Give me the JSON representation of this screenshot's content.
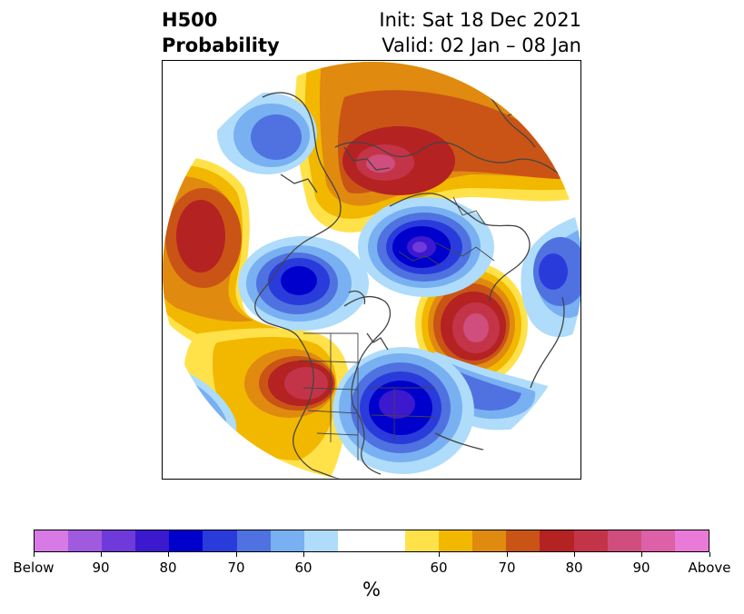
{
  "header": {
    "title_line1": "H500",
    "title_line2": "Probability",
    "init_text": "Init: Sat 18 Dec 2021",
    "valid_text": "Valid: 02 Jan – 08 Jan"
  },
  "map": {
    "projection": "north polar stereographic",
    "variable": "500 hPa height probability"
  },
  "colorbar": {
    "unit": "%",
    "segments": [
      {
        "class": "below",
        "color": "#d77ae6"
      },
      {
        "class": "below",
        "color": "#a05ae0"
      },
      {
        "class": "below",
        "color": "#6e3ad9"
      },
      {
        "class": "below",
        "color": "#3c18cf"
      },
      {
        "class": "below",
        "color": "#0000cc"
      },
      {
        "class": "below",
        "color": "#2a3bdb"
      },
      {
        "class": "below",
        "color": "#4f72e0"
      },
      {
        "class": "below",
        "color": "#78b0f2"
      },
      {
        "class": "below",
        "color": "#aedcfa"
      },
      {
        "class": "neutral",
        "color": "#ffffff"
      },
      {
        "class": "neutral",
        "color": "#ffffff"
      },
      {
        "class": "above",
        "color": "#ffe24a"
      },
      {
        "class": "above",
        "color": "#f2b800"
      },
      {
        "class": "above",
        "color": "#e08a10"
      },
      {
        "class": "above",
        "color": "#c95416"
      },
      {
        "class": "above",
        "color": "#b42222"
      },
      {
        "class": "above",
        "color": "#c43448"
      },
      {
        "class": "above",
        "color": "#d04e7e"
      },
      {
        "class": "above",
        "color": "#de60a6"
      },
      {
        "class": "above",
        "color": "#ea7ad8"
      }
    ],
    "tick_labels": [
      "Below",
      "90",
      "80",
      "70",
      "60",
      "60",
      "70",
      "80",
      "90",
      "Above"
    ]
  },
  "colors": {
    "above_strong": "#c43448",
    "above_mid": "#e08a10",
    "above_weak": "#ffe24a",
    "below_strong": "#0000cc",
    "below_mid": "#4f72e0",
    "below_weak": "#aedcfa",
    "coastline": "#444444"
  }
}
